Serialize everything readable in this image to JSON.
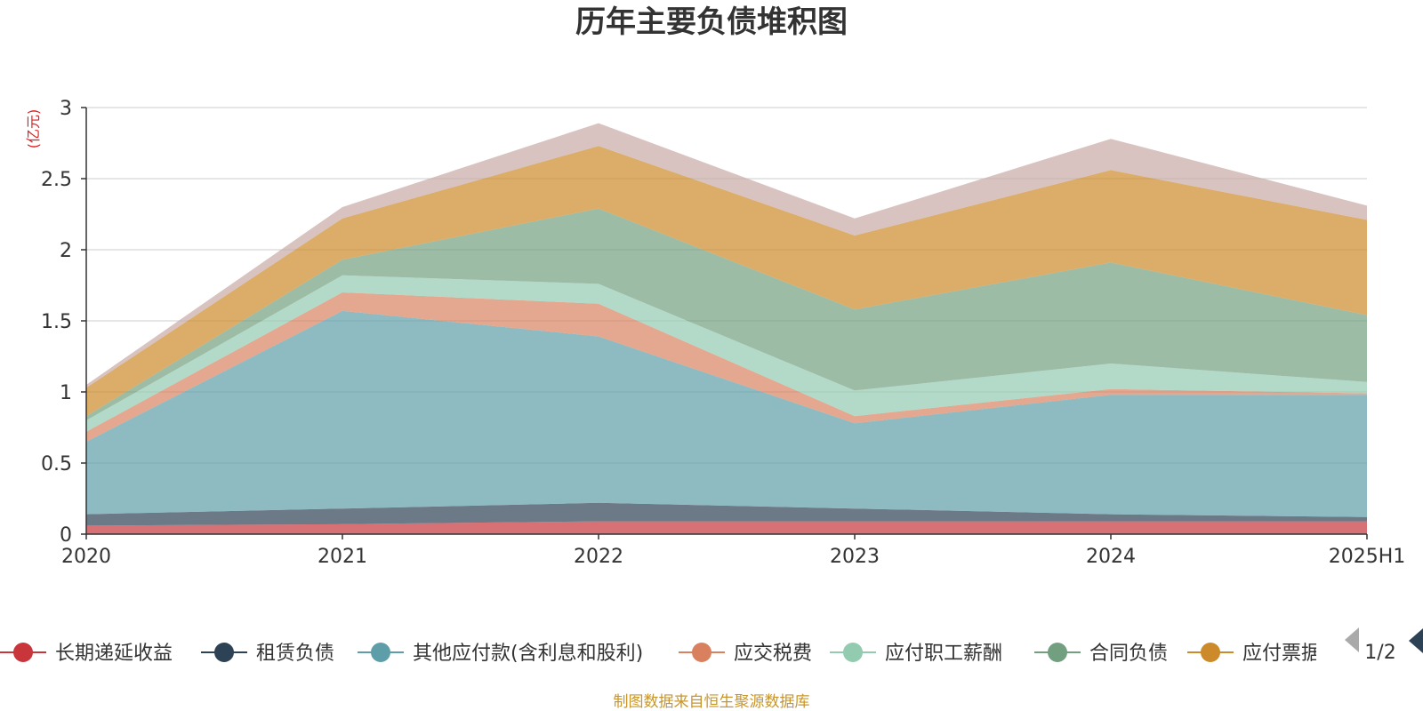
{
  "chart_data": {
    "type": "area",
    "title": "历年主要负债堆积图",
    "unit_label": "(亿元)",
    "source_note": "制图数据来自恒生聚源数据库",
    "x": [
      "2020",
      "2021",
      "2022",
      "2023",
      "2024",
      "2025H1"
    ],
    "ylim": [
      0,
      3
    ],
    "yticks": [
      "0",
      "0.5",
      "1",
      "1.5",
      "2",
      "2.5",
      "3"
    ],
    "grid": true,
    "legend_position": "bottom",
    "legend_page": "1/2",
    "series": [
      {
        "name": "长期递延收益",
        "color": "#c8353a",
        "values": [
          0.06,
          0.07,
          0.09,
          0.09,
          0.09,
          0.09
        ]
      },
      {
        "name": "租赁负债",
        "color": "#2e4256",
        "values": [
          0.08,
          0.11,
          0.13,
          0.09,
          0.05,
          0.03
        ]
      },
      {
        "name": "其他应付款(含利息和股利)",
        "color": "#5e9ea8",
        "values": [
          0.51,
          1.39,
          1.17,
          0.6,
          0.84,
          0.86
        ]
      },
      {
        "name": "应交税费",
        "color": "#d9815f",
        "values": [
          0.07,
          0.13,
          0.23,
          0.05,
          0.04,
          0.01
        ]
      },
      {
        "name": "应付职工薪酬",
        "color": "#93cbb0",
        "values": [
          0.08,
          0.12,
          0.14,
          0.18,
          0.18,
          0.08
        ]
      },
      {
        "name": "合同负债",
        "color": "#729f7f",
        "values": [
          0.03,
          0.11,
          0.53,
          0.57,
          0.71,
          0.47
        ]
      },
      {
        "name": "应付票据",
        "color": "#cc8a2a",
        "values": [
          0.2,
          0.29,
          0.44,
          0.52,
          0.65,
          0.67
        ]
      },
      {
        "name": "",
        "color": "#c7aaa5",
        "values": [
          0.02,
          0.08,
          0.16,
          0.12,
          0.22,
          0.1
        ]
      }
    ],
    "legend_items": [
      "长期递延收益",
      "租赁负债",
      "其他应付款(含利息和股利)",
      "应交税费",
      "应付职工薪酬",
      "合同负债",
      "应付票据"
    ],
    "colors": {
      "title": "#333333",
      "unit": "#e02020",
      "source": "#c8952a",
      "grid": "#cccccc",
      "axis": "#333333",
      "pager_inactive": "#aaaaaa",
      "pager_active": "#2e4256"
    }
  }
}
